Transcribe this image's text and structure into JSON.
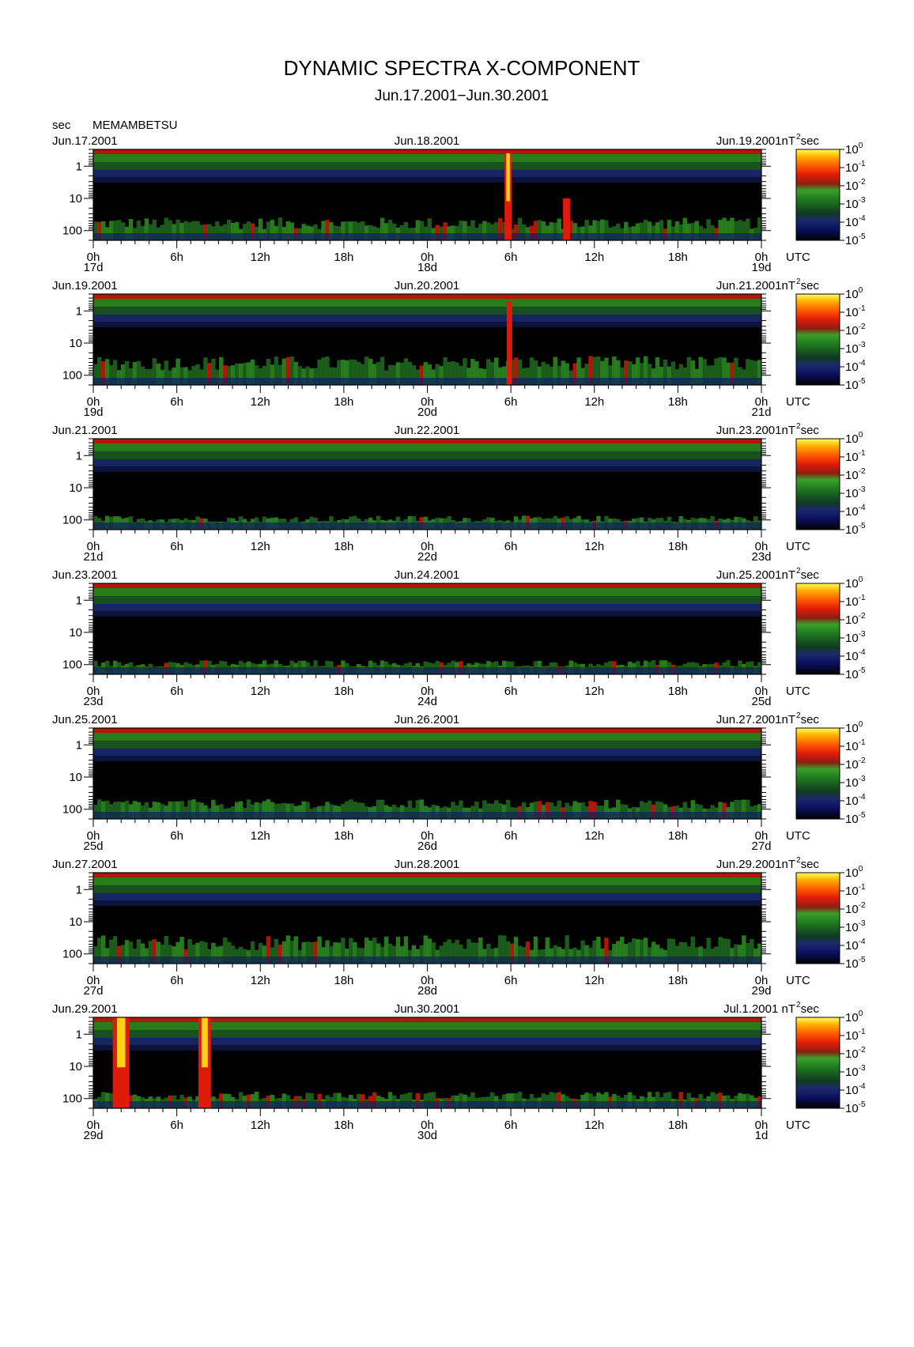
{
  "title": "DYNAMIC SPECTRA X-COMPONENT",
  "subtitle": "Jun.17.2001−Jun.30.2001",
  "y_unit_label": "sec",
  "station": "MEMAMBETSU",
  "colorbar_unit": {
    "base": "nT",
    "exponent": "2",
    "suffix": "sec"
  },
  "time_zone_label": "UTC",
  "colors": {
    "background": "#000000",
    "noise_floor": "#0a0f3a",
    "low": "#1a7a1a",
    "mid": "#dd2211",
    "high": "#ffee00"
  },
  "chart_data": {
    "type": "heatmap",
    "description_of_axes": "x: time (UTC), y: period in seconds (log scale, inverted), color: power nT^2 sec (log scale)",
    "y_scale": "log",
    "y_ticks": [
      "1",
      "10",
      "100"
    ],
    "y_range_sec": [
      0.3,
      200
    ],
    "x_tick_labels": [
      "0h",
      "6h",
      "12h",
      "18h",
      "0h",
      "6h",
      "12h",
      "18h",
      "0h"
    ],
    "colorbar": {
      "scale": "log",
      "range": [
        1e-05,
        1
      ],
      "tick_bases": [
        "10",
        "10",
        "10",
        "10",
        "10",
        "10"
      ],
      "tick_exponents": [
        "0",
        "-1",
        "-2",
        "-3",
        "-4",
        "-5"
      ]
    },
    "panels": [
      {
        "start_date": "Jun.17.2001",
        "mid_date": "Jun.18.2001",
        "end_date": "Jun.19.2001nT",
        "day_labels": [
          "17d",
          "18d",
          "19d"
        ],
        "events": [
          {
            "hour": 29.8,
            "width_h": 0.5,
            "top_period_sec": 0.4,
            "peak": "high"
          },
          {
            "hour": 34.0,
            "width_h": 0.5,
            "top_period_sec": 10,
            "peak": "mid"
          }
        ],
        "band_top_period_sec": 30,
        "activity": 0.55
      },
      {
        "start_date": "Jun.19.2001",
        "mid_date": "Jun.20.2001",
        "end_date": "Jun.21.2001nT",
        "day_labels": [
          "19d",
          "20d",
          "21d"
        ],
        "events": [
          {
            "hour": 29.9,
            "width_h": 0.4,
            "top_period_sec": 0.5,
            "peak": "mid"
          }
        ],
        "band_top_period_sec": 15,
        "activity": 0.5
      },
      {
        "start_date": "Jun.21.2001",
        "mid_date": "Jun.22.2001",
        "end_date": "Jun.23.2001nT",
        "day_labels": [
          "21d",
          "22d",
          "23d"
        ],
        "events": [],
        "band_top_period_sec": 40,
        "activity": 0.35
      },
      {
        "start_date": "Jun.23.2001",
        "mid_date": "Jun.24.2001",
        "end_date": "Jun.25.2001nT",
        "day_labels": [
          "23d",
          "24d",
          "25d"
        ],
        "events": [],
        "band_top_period_sec": 45,
        "activity": 0.4
      },
      {
        "start_date": "Jun.25.2001",
        "mid_date": "Jun.26.2001",
        "end_date": "Jun.27.2001nT",
        "day_labels": [
          "25d",
          "26d",
          "27d"
        ],
        "events": [],
        "band_top_period_sec": 30,
        "activity": 0.45
      },
      {
        "start_date": "Jun.27.2001",
        "mid_date": "Jun.28.2001",
        "end_date": "Jun.29.2001nT",
        "day_labels": [
          "27d",
          "28d",
          "29d"
        ],
        "events": [],
        "band_top_period_sec": 25,
        "activity": 0.65
      },
      {
        "start_date": "Jun.29.2001",
        "mid_date": "Jun.30.2001",
        "end_date": "Jul.1.2001 nT",
        "day_labels": [
          "29d",
          "30d",
          "1d"
        ],
        "events": [
          {
            "hour": 2.0,
            "width_h": 1.2,
            "top_period_sec": 0.3,
            "peak": "high"
          },
          {
            "hour": 8.0,
            "width_h": 0.9,
            "top_period_sec": 0.3,
            "peak": "high"
          }
        ],
        "band_top_period_sec": 40,
        "activity": 0.45
      }
    ]
  }
}
